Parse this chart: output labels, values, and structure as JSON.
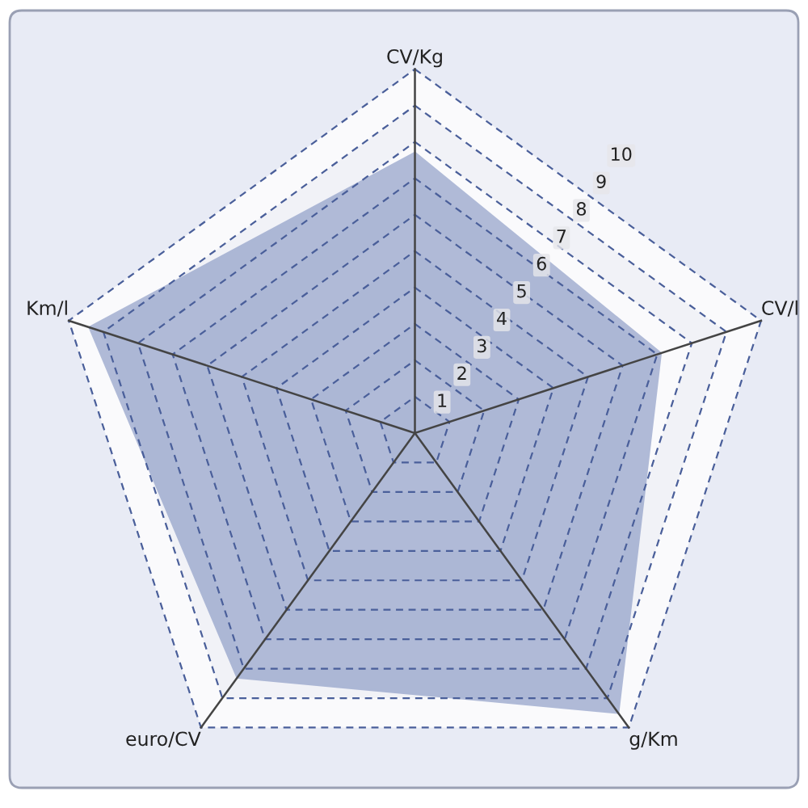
{
  "chart_data": {
    "type": "radar",
    "categories": [
      "CV/Kg",
      "CV/l",
      "g/Km",
      "euro/CV",
      "Km/l"
    ],
    "series": [
      {
        "color": "#7f91c0",
        "values": [
          7.7,
          7.1,
          9.5,
          8.3,
          9.4
        ]
      }
    ],
    "ylim": [
      0,
      10
    ],
    "yticks": [
      1,
      2,
      3,
      4,
      5,
      6,
      7,
      8,
      9,
      10
    ],
    "grid": true
  }
}
